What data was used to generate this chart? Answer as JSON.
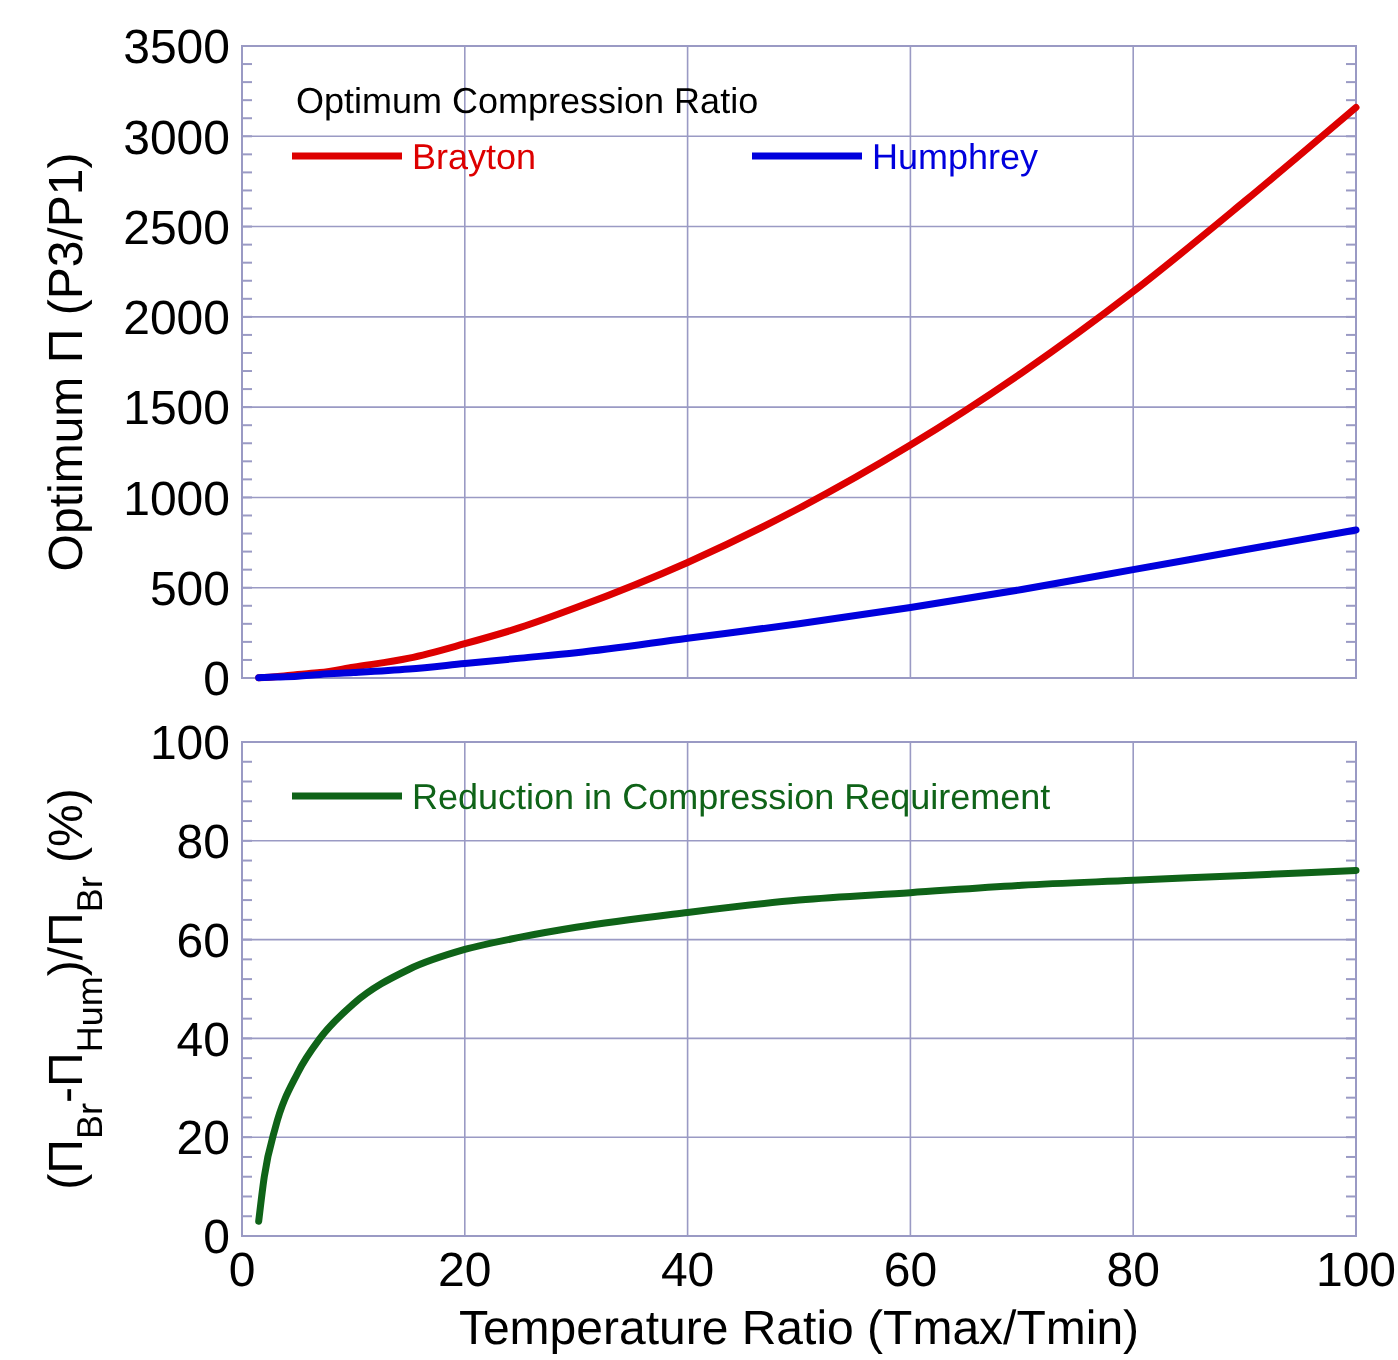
{
  "chart_data": [
    {
      "type": "line",
      "ylabel": "Optimum Π  (P3/P1)",
      "legend_title": "Optimum Compression Ratio",
      "legend": "top left",
      "grid": true,
      "tick_labels": "y",
      "x": [
        1.5,
        2,
        3,
        5,
        7,
        10,
        15,
        20,
        25,
        30,
        40,
        50,
        60,
        70,
        80,
        90,
        100
      ],
      "xlim": [
        0,
        100
      ],
      "xticks": [
        {
          "value": 0,
          "label": null
        },
        {
          "value": 20,
          "label": null
        },
        {
          "value": 40,
          "label": null
        },
        {
          "value": 60,
          "label": null
        },
        {
          "value": 80,
          "label": null
        },
        {
          "value": 100,
          "label": null
        }
      ],
      "ylim": [
        0,
        3500
      ],
      "yticks": [
        0,
        500,
        1000,
        1500,
        2000,
        2500,
        3000,
        3500
      ],
      "series": [
        {
          "name": "Brayton",
          "color": "#dd0000",
          "values": [
            2,
            3,
            7,
            20,
            30,
            60,
            110,
            190,
            280,
            390,
            640,
            940,
            1290,
            1690,
            2140,
            2640,
            3160
          ]
        },
        {
          "name": "Humphrey",
          "color": "#0000dd",
          "values": [
            2,
            3,
            5,
            10,
            20,
            30,
            50,
            80,
            110,
            140,
            220,
            300,
            390,
            490,
            600,
            710,
            820
          ]
        }
      ]
    },
    {
      "type": "line",
      "xlabel": "Temperature Ratio (Tmax/Tmin)",
      "ylabel": "(Π$_{Br}$-Π$_{Hum}$)/Π$_{Br}$ (%)",
      "legend": "top left",
      "grid": true,
      "x": [
        1.5,
        2,
        3,
        5,
        7,
        10,
        15,
        20,
        25,
        30,
        40,
        50,
        60,
        70,
        80,
        90,
        100
      ],
      "xlim": [
        0,
        100
      ],
      "xticks": [
        0,
        20,
        40,
        60,
        80,
        100
      ],
      "ylim": [
        0,
        100
      ],
      "yticks": [
        0,
        20,
        40,
        60,
        80,
        100
      ],
      "series": [
        {
          "name": "Reduction in Compression Requirement",
          "color": "#0f6318",
          "values": [
            3,
            12,
            22,
            33,
            40,
            47,
            54,
            58,
            60.5,
            62.5,
            65.5,
            68,
            69.5,
            71,
            72,
            73,
            74
          ]
        }
      ]
    }
  ]
}
